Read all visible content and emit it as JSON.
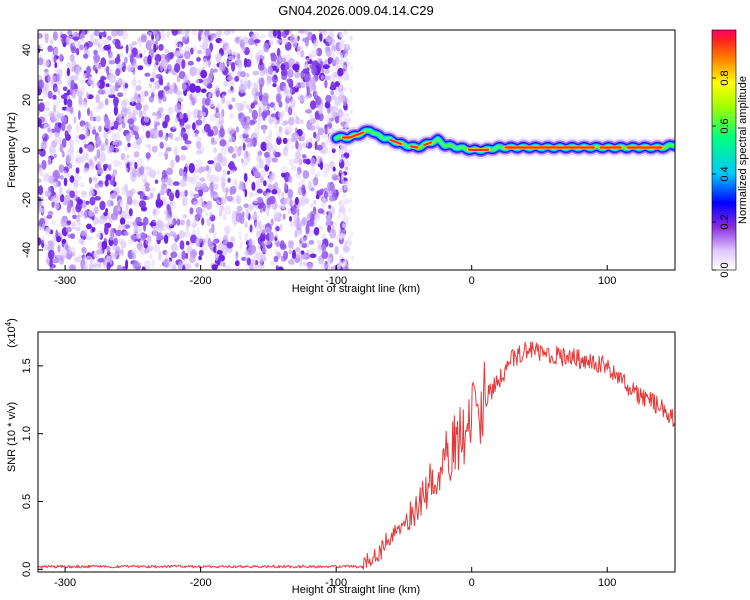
{
  "title": "GN04.2026.009.04.14.C29",
  "chart_data": [
    {
      "type": "heatmap",
      "name": "spectrogram",
      "xlabel": "Height of straight line (km)",
      "ylabel": "Frequency (Hz)",
      "xlim": [
        -320,
        150
      ],
      "ylim": [
        -48,
        48
      ],
      "xticks": [
        -300,
        -200,
        -100,
        0,
        100
      ],
      "yticks": [
        -40,
        -20,
        0,
        20,
        40
      ],
      "noise_region_x": [
        -320,
        -92
      ],
      "signal_ridge": {
        "x": [
          -100,
          -90,
          -80,
          -75,
          -70,
          -60,
          -50,
          -40,
          -30,
          -25,
          -20,
          -10,
          0,
          10,
          20,
          40,
          60,
          80,
          90,
          100,
          110,
          120,
          140,
          150
        ],
        "freq": [
          5,
          5,
          7,
          8,
          6,
          4,
          2,
          1,
          3,
          4,
          2,
          1,
          0,
          0,
          1,
          1,
          1,
          1,
          1,
          1,
          1,
          1,
          1,
          2
        ]
      },
      "colorbar": {
        "label": "Normalized spectral amplitude",
        "range": [
          0.0,
          1.0
        ],
        "ticks": [
          0.0,
          0.2,
          0.4,
          0.6,
          0.8
        ],
        "tick_labels": [
          "0.0",
          "0.2",
          "0.4",
          "0.6",
          "0.8"
        ]
      }
    },
    {
      "type": "line",
      "name": "snr",
      "xlabel": "Height of straight line (km)",
      "ylabel": "SNR (10 * v/v)",
      "y_multiplier": "(x10",
      "y_multiplier_exp": "4",
      "y_multiplier_close": ")",
      "xlim": [
        -320,
        150
      ],
      "ylim": [
        -0.02,
        1.75
      ],
      "xticks": [
        -300,
        -200,
        -100,
        0,
        100
      ],
      "yticks": [
        0.0,
        0.5,
        1.0,
        1.5
      ],
      "ytick_labels": [
        "0.0",
        "0.5",
        "1.0",
        "1.5"
      ],
      "color": "#e8393a",
      "series_envelope": {
        "x": [
          -320,
          -80,
          -70,
          -60,
          -50,
          -40,
          -30,
          -20,
          -10,
          0,
          10,
          20,
          30,
          40,
          60,
          80,
          100,
          110,
          120,
          130,
          140,
          150
        ],
        "y": [
          0.02,
          0.02,
          0.1,
          0.25,
          0.35,
          0.45,
          0.65,
          0.8,
          0.95,
          1.1,
          1.25,
          1.4,
          1.55,
          1.62,
          1.58,
          1.55,
          1.5,
          1.4,
          1.3,
          1.25,
          1.2,
          1.1
        ]
      }
    }
  ]
}
